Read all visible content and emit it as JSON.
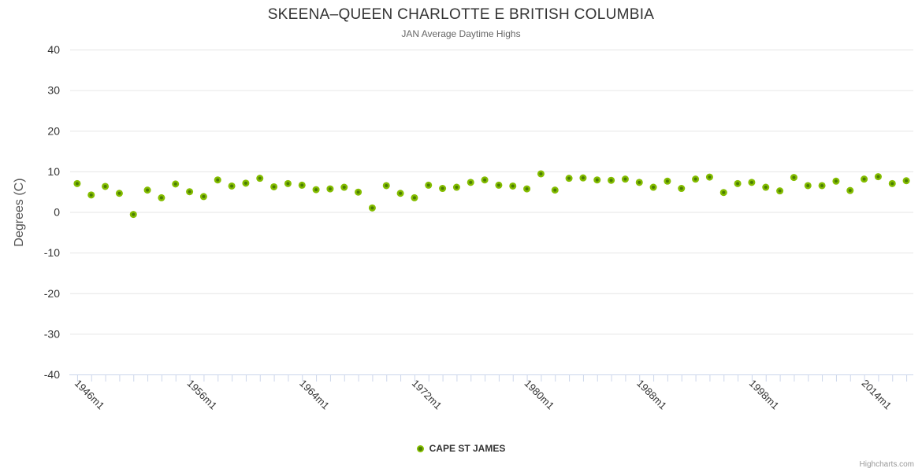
{
  "title": "SKEENA–QUEEN CHARLOTTE E BRITISH COLUMBIA",
  "subtitle": "JAN Average Daytime Highs",
  "credits": "Highcharts.com",
  "legend": {
    "items": [
      {
        "label": "CAPE ST JAMES",
        "marker": "circle-icon"
      }
    ]
  },
  "colors": {
    "marker_rim": "#84bd00",
    "marker_core": "#4b7d02",
    "grid_line": "#e6e6e6",
    "axis_line": "#ccd6eb",
    "tick_mark": "#ccd6eb",
    "axis_label": "#333333",
    "title": "#333333",
    "subtitle": "#666666",
    "axis_title": "#555555",
    "legend_text": "#333333",
    "credits": "#999999"
  },
  "chart_data": {
    "type": "scatter",
    "title": "SKEENA–QUEEN CHARLOTTE E BRITISH COLUMBIA",
    "subtitle": "JAN Average Daytime Highs",
    "xlabel": "",
    "ylabel": "Degrees (C)",
    "ylim": [
      -40,
      40
    ],
    "ytick_step": 10,
    "ytick_labels": [
      "40",
      "30",
      "20",
      "10",
      "0",
      "-10",
      "-20",
      "-30",
      "-40"
    ],
    "ytick_values": [
      40,
      30,
      20,
      10,
      0,
      -10,
      -20,
      -30,
      -40
    ],
    "grid": true,
    "legend_position": "bottom-center",
    "marker": "circle",
    "categories": [
      "1946m1",
      "1947m1",
      "1948m1",
      "1949m1",
      "1952m1",
      "1953m1",
      "1954m1",
      "1955m1",
      "1956m1",
      "1957m1",
      "1958m1",
      "1959m1",
      "1960m1",
      "1961m1",
      "1962m1",
      "1963m1",
      "1964m1",
      "1965m1",
      "1966m1",
      "1967m1",
      "1968m1",
      "1969m1",
      "1970m1",
      "1971m1",
      "1972m1",
      "1973m1",
      "1974m1",
      "1975m1",
      "1976m1",
      "1977m1",
      "1978m1",
      "1979m1",
      "1980m1",
      "1981m1",
      "1982m1",
      "1983m1",
      "1984m1",
      "1985m1",
      "1986m1",
      "1987m1",
      "1988m1",
      "1989m1",
      "1990m1",
      "1991m1",
      "1994m1",
      "1995m1",
      "1996m1",
      "1997m1",
      "1998m1",
      "1999m1",
      "2000m1",
      "2001m1",
      "2002m1",
      "2003m1",
      "2004m1",
      "2005m1",
      "2014m1",
      "2015m1",
      "2016m1",
      "2017m1"
    ],
    "xtick_label_indices": [
      0,
      8,
      16,
      24,
      32,
      40,
      48,
      56
    ],
    "xtick_labels_shown": [
      "1946m1",
      "1956m1",
      "1964m1",
      "1972m1",
      "1980m1",
      "1988m1",
      "1998m1",
      "2014m1"
    ],
    "series": [
      {
        "name": "CAPE ST JAMES",
        "values": [
          7.0,
          4.2,
          6.3,
          4.6,
          -0.6,
          5.4,
          3.5,
          6.9,
          5.0,
          3.8,
          7.9,
          6.4,
          7.1,
          8.3,
          6.2,
          7.0,
          6.6,
          5.5,
          5.7,
          6.1,
          4.9,
          1.0,
          6.5,
          4.6,
          3.5,
          6.6,
          5.8,
          6.1,
          7.3,
          7.9,
          6.6,
          6.4,
          5.7,
          9.4,
          5.4,
          8.3,
          8.4,
          7.9,
          7.8,
          8.1,
          7.3,
          6.1,
          7.6,
          5.8,
          8.1,
          8.6,
          4.8,
          7.0,
          7.3,
          6.1,
          5.2,
          8.5,
          6.5,
          6.5,
          7.6,
          5.3,
          8.1,
          8.7,
          7.0,
          7.7
        ]
      }
    ]
  }
}
